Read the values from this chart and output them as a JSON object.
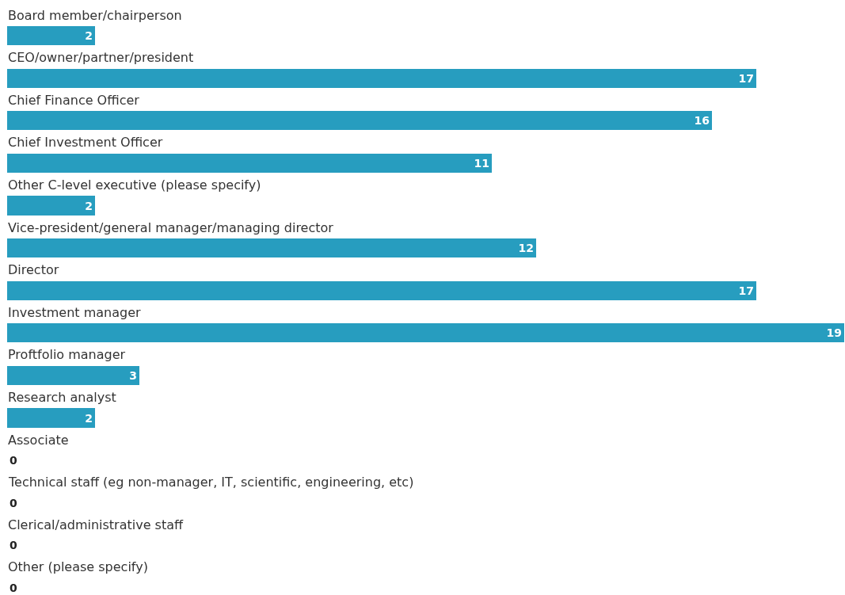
{
  "chart_data": {
    "type": "bar",
    "orientation": "horizontal",
    "data_labels": true,
    "categories": [
      "Board member/chairperson",
      "CEO/owner/partner/president",
      "Chief Finance Officer",
      "Chief Investment Officer",
      "Other C-level executive (please specify)",
      "Vice-president/general manager/managing director",
      "Director",
      "Investment manager",
      "Proftfolio manager",
      "Research analyst",
      "Associate",
      "Technical staff (eg non-manager, IT, scientific, engineering, etc)",
      "Clerical/administrative staff",
      "Other (please specify)"
    ],
    "values": [
      2,
      17,
      16,
      11,
      2,
      12,
      17,
      19,
      3,
      2,
      0,
      0,
      0,
      0
    ],
    "color": "#279dbf"
  }
}
